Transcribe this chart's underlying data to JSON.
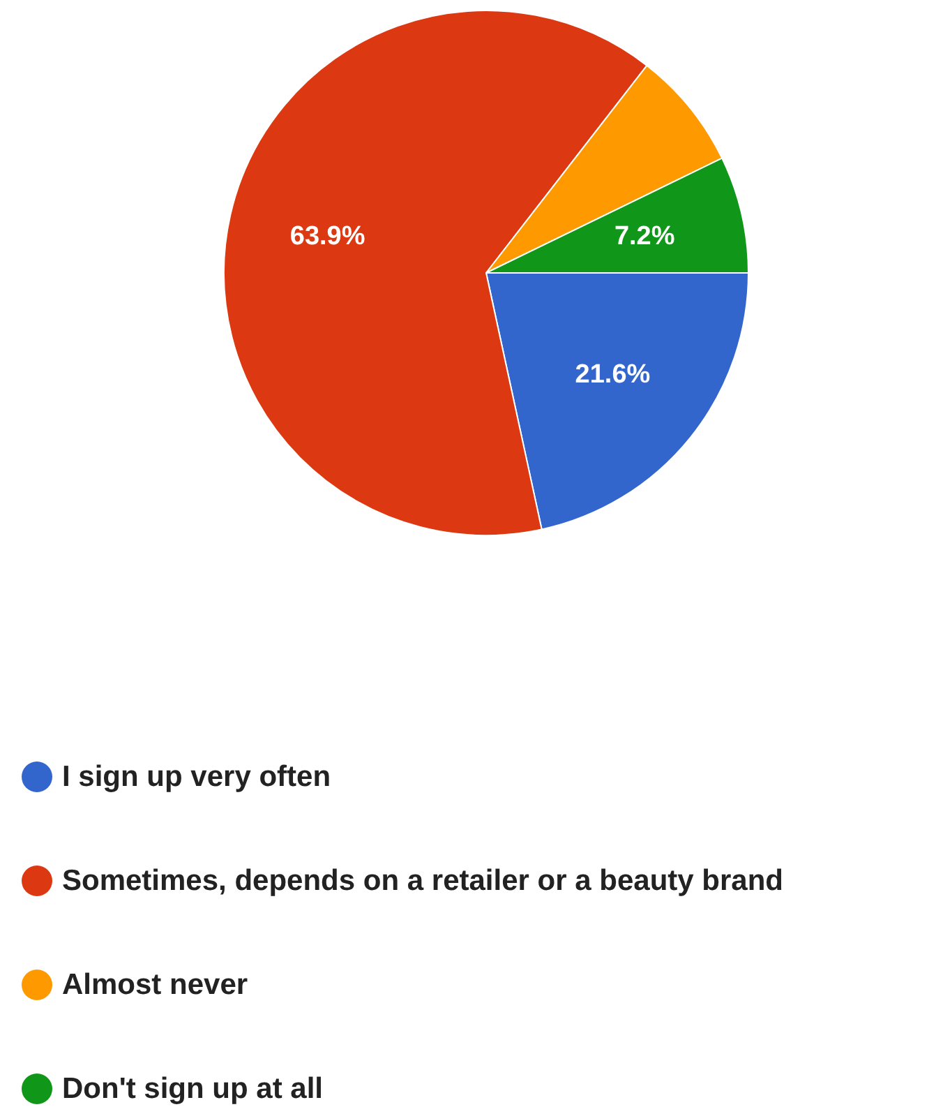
{
  "chart_data": {
    "type": "pie",
    "categories": [
      "I sign up very often",
      "Sometimes, depends on a retailer or a beauty brand",
      "Almost never",
      "Don't sign up at all"
    ],
    "values": [
      21.6,
      63.9,
      7.3,
      7.2
    ],
    "colors": [
      "#3366cc",
      "#dc3912",
      "#ff9900",
      "#109618"
    ],
    "value_labels": [
      "21.6%",
      "63.9%",
      null,
      "7.2%"
    ],
    "legend": "bottom"
  }
}
